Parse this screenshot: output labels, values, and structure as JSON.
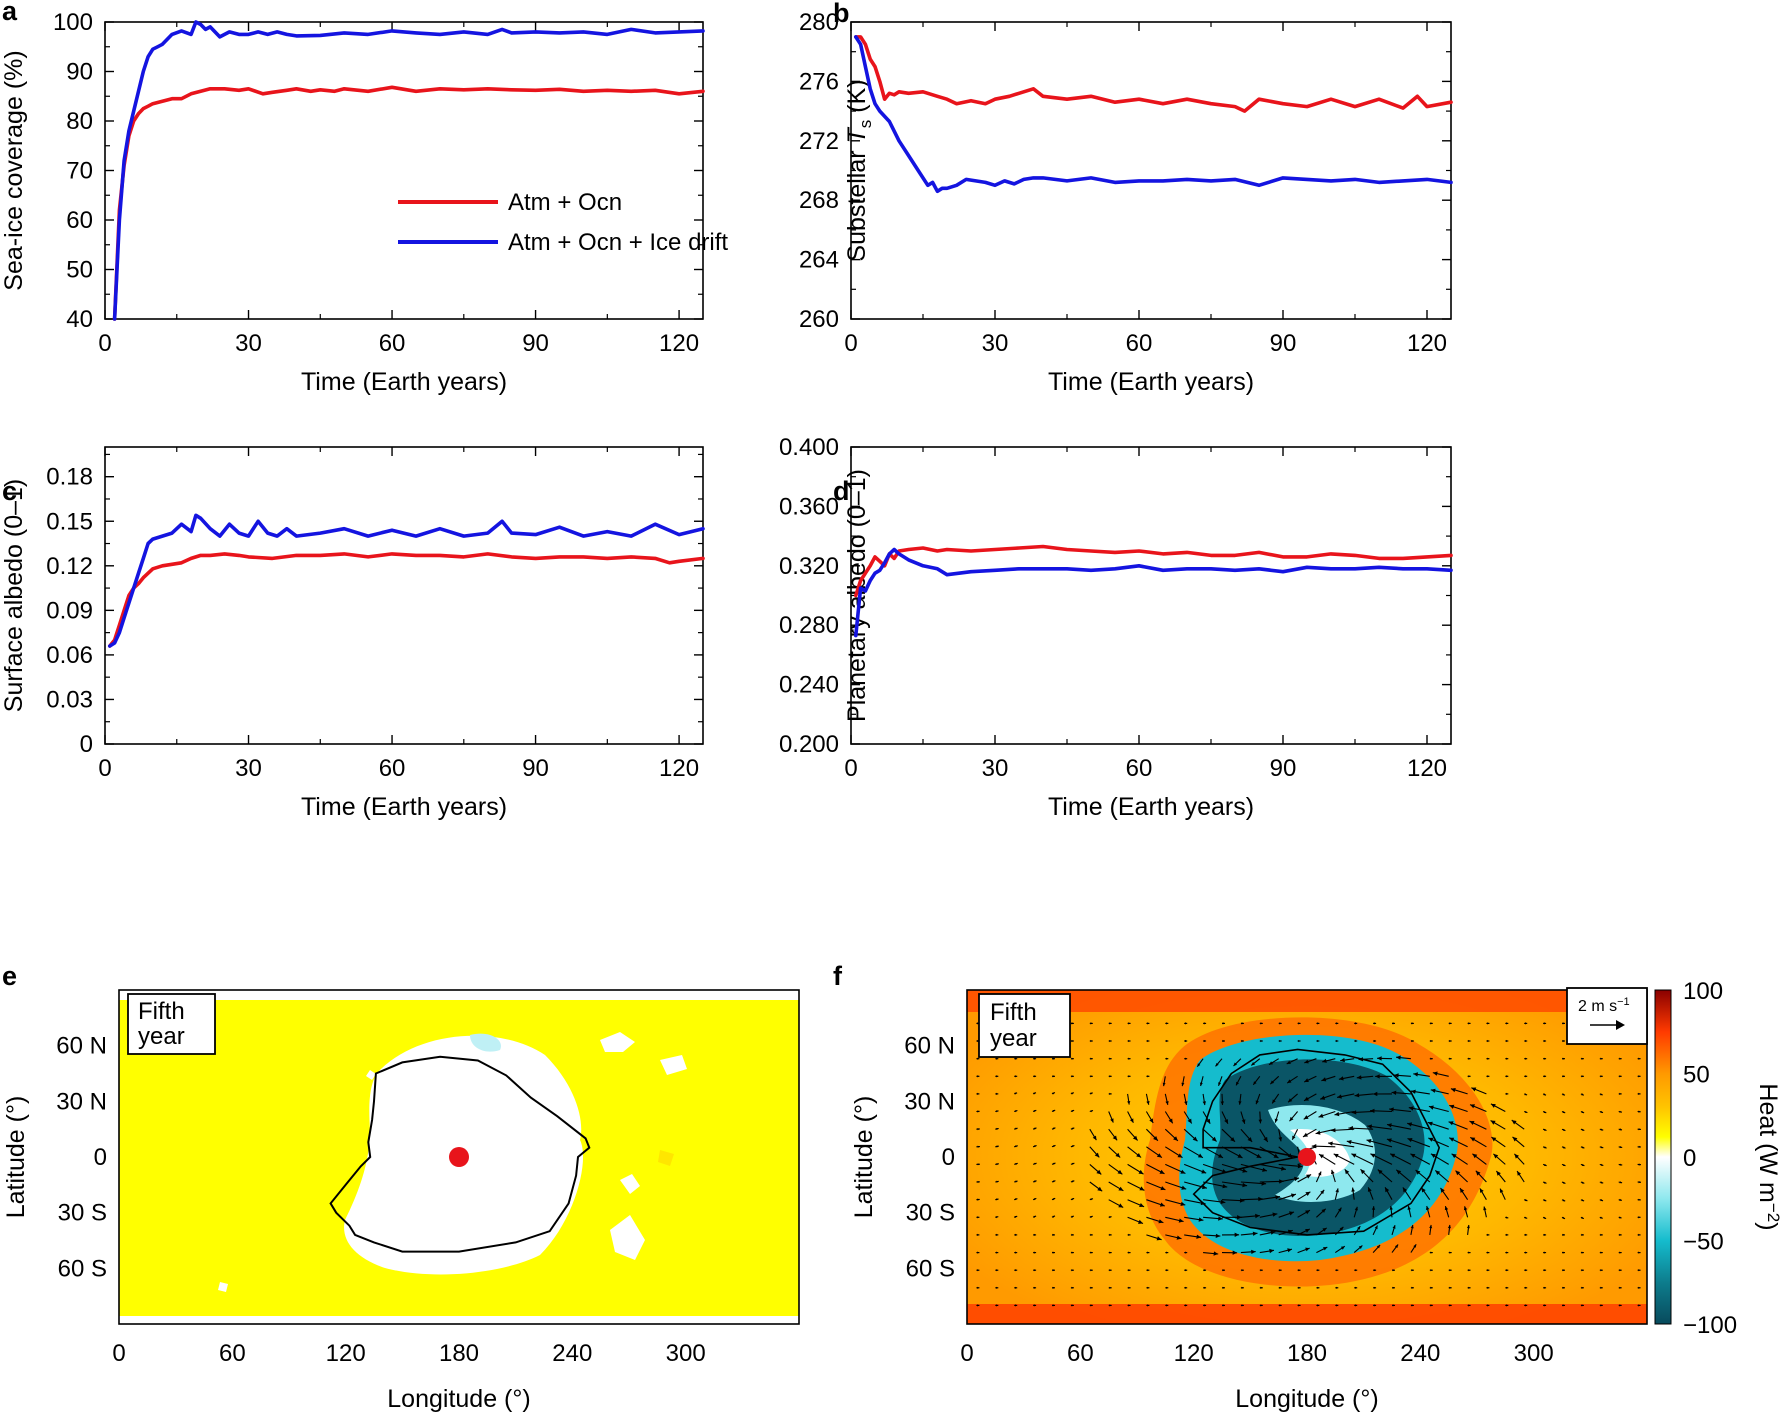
{
  "colors": {
    "red": "#e8141b",
    "blue": "#1414e0",
    "ice_free": "#ffff00",
    "ice": "#ffffff",
    "arrow": "#000000"
  },
  "chart_data": [
    {
      "panel": "a",
      "type": "line",
      "xlabel": "Time (Earth years)",
      "ylabel": "Sea-ice coverage (%)",
      "xlim": [
        0,
        125
      ],
      "ylim": [
        40,
        100
      ],
      "xticks": [
        0,
        30,
        60,
        90,
        120
      ],
      "yticks": [
        40,
        50,
        60,
        70,
        80,
        90,
        100
      ],
      "legend": {
        "placement": "center-right"
      },
      "series": [
        {
          "name": "Atm + Ocn",
          "color": "red",
          "x": [
            2,
            3,
            4,
            5,
            6,
            7,
            8,
            9,
            10,
            12,
            14,
            16,
            18,
            20,
            22,
            25,
            28,
            30,
            33,
            35,
            38,
            40,
            43,
            45,
            48,
            50,
            55,
            60,
            65,
            70,
            75,
            80,
            85,
            90,
            95,
            100,
            105,
            110,
            115,
            120,
            125
          ],
          "y": [
            40,
            62,
            71,
            77,
            80,
            81.5,
            82.5,
            83,
            83.5,
            84,
            84.5,
            84.5,
            85.5,
            86,
            86.5,
            86.5,
            86.2,
            86.5,
            85.5,
            85.8,
            86.2,
            86.5,
            86,
            86.3,
            86,
            86.5,
            86,
            86.8,
            86,
            86.5,
            86.3,
            86.5,
            86.3,
            86.2,
            86.4,
            86,
            86.2,
            86,
            86.2,
            85.5,
            86
          ]
        },
        {
          "name": "Atm + Ocn + Ice drift",
          "color": "blue",
          "x": [
            2,
            3,
            4,
            5,
            6,
            7,
            8,
            9,
            10,
            11,
            12,
            14,
            16,
            18,
            19,
            20,
            21,
            22,
            24,
            26,
            28,
            30,
            32,
            34,
            36,
            38,
            40,
            45,
            50,
            55,
            60,
            65,
            70,
            75,
            80,
            83,
            85,
            90,
            95,
            100,
            105,
            110,
            115,
            120,
            125
          ],
          "y": [
            40,
            60,
            72,
            78,
            82,
            86,
            90,
            93,
            94.5,
            95,
            95.5,
            97.5,
            98.2,
            97.5,
            100,
            99.5,
            98.5,
            99,
            97,
            98,
            97.5,
            97.5,
            98,
            97.5,
            98,
            97.5,
            97.2,
            97.3,
            97.8,
            97.5,
            98.2,
            97.8,
            97.5,
            98,
            97.5,
            98.5,
            97.8,
            98,
            97.8,
            98,
            97.5,
            98.5,
            97.8,
            98,
            98.2
          ]
        }
      ]
    },
    {
      "panel": "b",
      "type": "line",
      "xlabel": "Time (Earth years)",
      "ylabel_pre": "Substellar ",
      "ylabel_var": "T",
      "ylabel_sub": "s",
      "ylabel_post": " (K)",
      "xlim": [
        0,
        125
      ],
      "ylim": [
        260,
        280
      ],
      "xticks": [
        0,
        30,
        60,
        90,
        120
      ],
      "yticks": [
        260,
        264,
        268,
        272,
        276,
        280
      ],
      "series": [
        {
          "name": "Atm + Ocn",
          "color": "red",
          "x": [
            1,
            2,
            3,
            4,
            5,
            6,
            7,
            8,
            9,
            10,
            12,
            15,
            18,
            20,
            22,
            25,
            28,
            30,
            33,
            35,
            38,
            40,
            45,
            50,
            55,
            60,
            65,
            70,
            75,
            80,
            82,
            85,
            90,
            95,
            100,
            105,
            110,
            115,
            118,
            120,
            125
          ],
          "y": [
            279,
            279,
            278.5,
            277.5,
            277,
            276,
            274.8,
            275.2,
            275.1,
            275.3,
            275.2,
            275.3,
            275,
            274.8,
            274.5,
            274.7,
            274.5,
            274.8,
            275,
            275.2,
            275.5,
            275,
            274.8,
            275,
            274.6,
            274.8,
            274.5,
            274.8,
            274.5,
            274.3,
            274,
            274.8,
            274.5,
            274.3,
            274.8,
            274.3,
            274.8,
            274.2,
            275,
            274.3,
            274.6
          ]
        },
        {
          "name": "Atm + Ocn + Ice drift",
          "color": "blue",
          "x": [
            1,
            2,
            3,
            4,
            5,
            6,
            8,
            10,
            12,
            14,
            16,
            17,
            18,
            19,
            20,
            22,
            24,
            26,
            28,
            30,
            32,
            34,
            36,
            38,
            40,
            45,
            50,
            55,
            60,
            65,
            70,
            75,
            80,
            85,
            90,
            95,
            100,
            105,
            110,
            115,
            120,
            125
          ],
          "y": [
            279,
            278.5,
            277,
            275.5,
            274.5,
            274,
            273.3,
            272,
            271,
            270,
            269,
            269.2,
            268.6,
            268.8,
            268.8,
            269,
            269.4,
            269.3,
            269.2,
            269,
            269.3,
            269.1,
            269.4,
            269.5,
            269.5,
            269.3,
            269.5,
            269.2,
            269.3,
            269.3,
            269.4,
            269.3,
            269.4,
            269,
            269.5,
            269.4,
            269.3,
            269.4,
            269.2,
            269.3,
            269.4,
            269.2
          ]
        }
      ]
    },
    {
      "panel": "c",
      "type": "line",
      "xlabel": "Time (Earth years)",
      "ylabel": "Surface albedo (0–1)",
      "xlim": [
        0,
        125
      ],
      "ylim": [
        0,
        0.2
      ],
      "xticks": [
        0,
        30,
        60,
        90,
        120
      ],
      "yticks": [
        0,
        0.03,
        0.06,
        0.09,
        0.12,
        0.15,
        0.18
      ],
      "ytick_labels": [
        "0",
        "0.03",
        "0.06",
        "0.09",
        "0.12",
        "0.15",
        "0.18"
      ],
      "series": [
        {
          "name": "Atm + Ocn",
          "color": "red",
          "x": [
            1,
            2,
            3,
            4,
            5,
            6,
            7,
            8,
            9,
            10,
            12,
            14,
            16,
            18,
            20,
            22,
            25,
            28,
            30,
            35,
            40,
            45,
            50,
            55,
            60,
            65,
            70,
            75,
            80,
            85,
            90,
            95,
            100,
            105,
            110,
            115,
            118,
            120,
            125
          ],
          "y": [
            0.066,
            0.07,
            0.08,
            0.09,
            0.1,
            0.105,
            0.108,
            0.112,
            0.115,
            0.118,
            0.12,
            0.121,
            0.122,
            0.125,
            0.127,
            0.127,
            0.128,
            0.127,
            0.126,
            0.125,
            0.127,
            0.127,
            0.128,
            0.126,
            0.128,
            0.127,
            0.127,
            0.126,
            0.128,
            0.126,
            0.125,
            0.126,
            0.126,
            0.125,
            0.126,
            0.125,
            0.122,
            0.123,
            0.125
          ]
        },
        {
          "name": "Atm + Ocn + Ice drift",
          "color": "blue",
          "x": [
            1,
            2,
            3,
            4,
            5,
            6,
            7,
            8,
            9,
            10,
            12,
            14,
            16,
            18,
            19,
            20,
            22,
            24,
            26,
            28,
            30,
            32,
            34,
            36,
            38,
            40,
            45,
            50,
            55,
            60,
            65,
            70,
            75,
            80,
            83,
            85,
            90,
            95,
            100,
            105,
            110,
            115,
            120,
            125
          ],
          "y": [
            0.066,
            0.068,
            0.075,
            0.085,
            0.095,
            0.105,
            0.115,
            0.125,
            0.135,
            0.138,
            0.14,
            0.142,
            0.148,
            0.143,
            0.154,
            0.152,
            0.145,
            0.14,
            0.148,
            0.142,
            0.14,
            0.15,
            0.142,
            0.14,
            0.145,
            0.14,
            0.142,
            0.145,
            0.14,
            0.144,
            0.14,
            0.145,
            0.14,
            0.142,
            0.15,
            0.142,
            0.141,
            0.146,
            0.14,
            0.143,
            0.14,
            0.148,
            0.141,
            0.145
          ]
        }
      ]
    },
    {
      "panel": "d",
      "type": "line",
      "xlabel": "Time (Earth years)",
      "ylabel": "Planetary albedo (0–1)",
      "xlim": [
        0,
        125
      ],
      "ylim": [
        0.2,
        0.4
      ],
      "xticks": [
        0,
        30,
        60,
        90,
        120
      ],
      "yticks": [
        0.2,
        0.24,
        0.28,
        0.32,
        0.36,
        0.4
      ],
      "ytick_labels": [
        "0.200",
        "0.240",
        "0.280",
        "0.320",
        "0.360",
        "0.400"
      ],
      "series": [
        {
          "name": "Atm + Ocn",
          "color": "red",
          "x": [
            1,
            2,
            3,
            4,
            5,
            6,
            7,
            8,
            9,
            10,
            12,
            15,
            18,
            20,
            25,
            30,
            35,
            40,
            45,
            50,
            55,
            60,
            65,
            70,
            75,
            80,
            85,
            90,
            95,
            100,
            105,
            110,
            115,
            120,
            125
          ],
          "y": [
            0.3,
            0.31,
            0.315,
            0.32,
            0.326,
            0.323,
            0.32,
            0.328,
            0.325,
            0.33,
            0.331,
            0.332,
            0.33,
            0.331,
            0.33,
            0.331,
            0.332,
            0.333,
            0.331,
            0.33,
            0.329,
            0.33,
            0.328,
            0.329,
            0.327,
            0.327,
            0.329,
            0.326,
            0.326,
            0.328,
            0.327,
            0.325,
            0.325,
            0.326,
            0.327
          ]
        },
        {
          "name": "Atm + Ocn + Ice drift",
          "color": "blue",
          "x": [
            1,
            2,
            3,
            4,
            5,
            6,
            7,
            8,
            9,
            10,
            12,
            15,
            18,
            20,
            25,
            30,
            35,
            40,
            45,
            50,
            55,
            60,
            65,
            70,
            75,
            80,
            85,
            90,
            95,
            100,
            105,
            110,
            115,
            120,
            125
          ],
          "y": [
            0.273,
            0.305,
            0.303,
            0.31,
            0.315,
            0.317,
            0.322,
            0.328,
            0.331,
            0.328,
            0.324,
            0.32,
            0.318,
            0.314,
            0.316,
            0.317,
            0.318,
            0.318,
            0.318,
            0.317,
            0.318,
            0.32,
            0.317,
            0.318,
            0.318,
            0.317,
            0.318,
            0.316,
            0.319,
            0.318,
            0.318,
            0.319,
            0.318,
            0.318,
            0.317
          ]
        }
      ]
    },
    {
      "panel": "e",
      "type": "heatmap",
      "xlabel": "Longitude (°)",
      "ylabel": "Latitude (°)",
      "xlim": [
        0,
        360
      ],
      "ylim": [
        -90,
        90
      ],
      "xticks": [
        0,
        60,
        120,
        180,
        240,
        300
      ],
      "yticks": [
        60,
        30,
        0,
        -30,
        -60
      ],
      "ytick_labels": [
        "60 N",
        "30 N",
        "0",
        "30 S",
        "60 S"
      ],
      "annotation": "Fifth year",
      "substellar_point": [
        180,
        0
      ],
      "ice_edge_contour": [
        [
          136,
          45
        ],
        [
          150,
          51
        ],
        [
          170,
          54
        ],
        [
          190,
          52
        ],
        [
          205,
          44
        ],
        [
          218,
          32
        ],
        [
          232,
          22
        ],
        [
          247,
          10
        ],
        [
          249,
          5
        ],
        [
          243,
          0
        ],
        [
          242,
          -10
        ],
        [
          238,
          -25
        ],
        [
          228,
          -40
        ],
        [
          210,
          -46
        ],
        [
          180,
          -51
        ],
        [
          150,
          -51
        ],
        [
          135,
          -46
        ],
        [
          125,
          -42
        ],
        [
          122,
          -37
        ],
        [
          115,
          -30
        ],
        [
          112,
          -25
        ],
        [
          120,
          -15
        ],
        [
          128,
          -5
        ],
        [
          133,
          0
        ],
        [
          132,
          8
        ],
        [
          134,
          20
        ],
        [
          135,
          30
        ]
      ]
    },
    {
      "panel": "f",
      "type": "heatmap",
      "xlabel": "Longitude (°)",
      "ylabel": "Latitude (°)",
      "xlim": [
        0,
        360
      ],
      "ylim": [
        -90,
        90
      ],
      "xticks": [
        0,
        60,
        120,
        180,
        240,
        300
      ],
      "yticks": [
        60,
        30,
        0,
        -30,
        -60
      ],
      "ytick_labels": [
        "60 N",
        "30 N",
        "0",
        "30 S",
        "60 S"
      ],
      "annotation": "Fifth year",
      "substellar_point": [
        180,
        0
      ],
      "quiver_key": "2 m s",
      "quiver_key_sup": "−1",
      "colorbar": {
        "label": "Heat (W m",
        "label_sup": "−2",
        "label_close": ")",
        "range": [
          -100,
          100
        ],
        "ticks": [
          100,
          50,
          0,
          -50,
          -100
        ],
        "tick_labels": [
          "100",
          "50",
          "0",
          "−50",
          "−100"
        ],
        "stops": [
          [
            -100,
            "#084a5c"
          ],
          [
            -75,
            "#0d7d8d"
          ],
          [
            -50,
            "#15bccd"
          ],
          [
            -25,
            "#8ee8ee"
          ],
          [
            0,
            "#ffffff"
          ],
          [
            12,
            "#ffff00"
          ],
          [
            30,
            "#ffc400"
          ],
          [
            50,
            "#ff9900"
          ],
          [
            75,
            "#ff3a00"
          ],
          [
            100,
            "#8a0000"
          ]
        ]
      },
      "ice_edge_contour": [
        [
          140,
          45
        ],
        [
          155,
          55
        ],
        [
          175,
          58
        ],
        [
          200,
          55
        ],
        [
          220,
          50
        ],
        [
          235,
          35
        ],
        [
          245,
          15
        ],
        [
          250,
          5
        ],
        [
          245,
          -10
        ],
        [
          235,
          -25
        ],
        [
          210,
          -40
        ],
        [
          180,
          -42
        ],
        [
          150,
          -38
        ],
        [
          130,
          -30
        ],
        [
          120,
          -20
        ],
        [
          130,
          -10
        ],
        [
          150,
          -5
        ],
        [
          175,
          0
        ],
        [
          150,
          5
        ],
        [
          125,
          5
        ],
        [
          125,
          15
        ],
        [
          130,
          30
        ]
      ]
    }
  ],
  "legend_entries": [
    "Atm + Ocn",
    "Atm + Ocn + Ice drift"
  ]
}
